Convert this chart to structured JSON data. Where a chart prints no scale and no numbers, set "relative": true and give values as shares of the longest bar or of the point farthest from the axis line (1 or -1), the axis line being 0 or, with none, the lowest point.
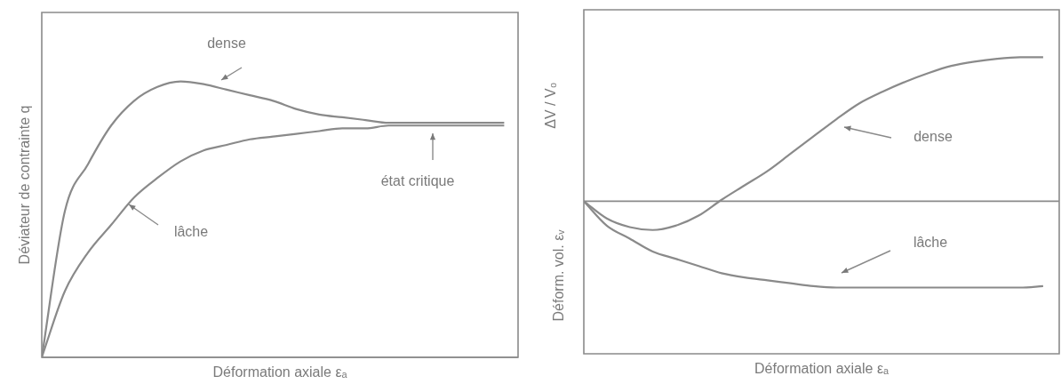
{
  "chart_data": [
    {
      "type": "line",
      "relative": true,
      "xlabel": "Déformation axiale εₐ",
      "ylabel": "Déviateur de contrainte q",
      "categories": [
        null,
        null,
        null,
        null,
        null,
        null,
        null,
        null,
        null,
        null,
        null,
        null,
        null,
        null,
        null,
        null,
        null,
        null,
        null,
        null,
        null
      ],
      "series": [
        {
          "color": "#8a8a8a",
          "values": [
            0,
            0.53,
            0.7,
            0.84,
            0.93,
            0.98,
            1,
            0.99,
            0.97,
            0.95,
            0.93,
            0.9,
            0.88,
            0.87,
            0.86,
            0.85,
            0.85,
            0.85,
            0.85,
            0.85,
            0.85
          ]
        },
        {
          "color": "#8a8a8a",
          "values": [
            0,
            0.24,
            0.38,
            0.48,
            0.58,
            0.65,
            0.71,
            0.75,
            0.77,
            0.79,
            0.8,
            0.81,
            0.82,
            0.83,
            0.83,
            0.84,
            0.84,
            0.84,
            0.84,
            0.84,
            0.84
          ]
        }
      ],
      "annotations": [
        "dense",
        "lâche",
        "état critique"
      ],
      "legend": false,
      "marker": "none",
      "line_style": "solid"
    },
    {
      "type": "line",
      "relative": true,
      "xlabel": "Déformation axiale εₐ",
      "ylabel": "ΔV / V₀",
      "categories": [
        null,
        null,
        null,
        null,
        null,
        null,
        null,
        null,
        null,
        null,
        null,
        null,
        null,
        null,
        null,
        null,
        null,
        null,
        null,
        null,
        null
      ],
      "series": [
        {
          "color": "#8a8a8a",
          "values": [
            0,
            -0.12,
            -0.18,
            -0.2,
            -0.17,
            -0.1,
            0.01,
            0.11,
            0.21,
            0.33,
            0.45,
            0.57,
            0.68,
            0.76,
            0.83,
            0.89,
            0.94,
            0.97,
            0.99,
            1,
            1
          ]
        },
        {
          "color": "#8a8a8a",
          "values": [
            0,
            -0.17,
            -0.26,
            -0.35,
            -0.4,
            -0.45,
            -0.5,
            -0.53,
            -0.55,
            -0.57,
            -0.59,
            -0.6,
            -0.6,
            -0.6,
            -0.6,
            -0.6,
            -0.6,
            -0.6,
            -0.6,
            -0.6,
            -0.59
          ]
        }
      ],
      "annotations": [
        "dense",
        "lâche",
        "Déform. vol. εᵥ"
      ],
      "legend": false,
      "marker": "none",
      "line_style": "solid"
    }
  ]
}
